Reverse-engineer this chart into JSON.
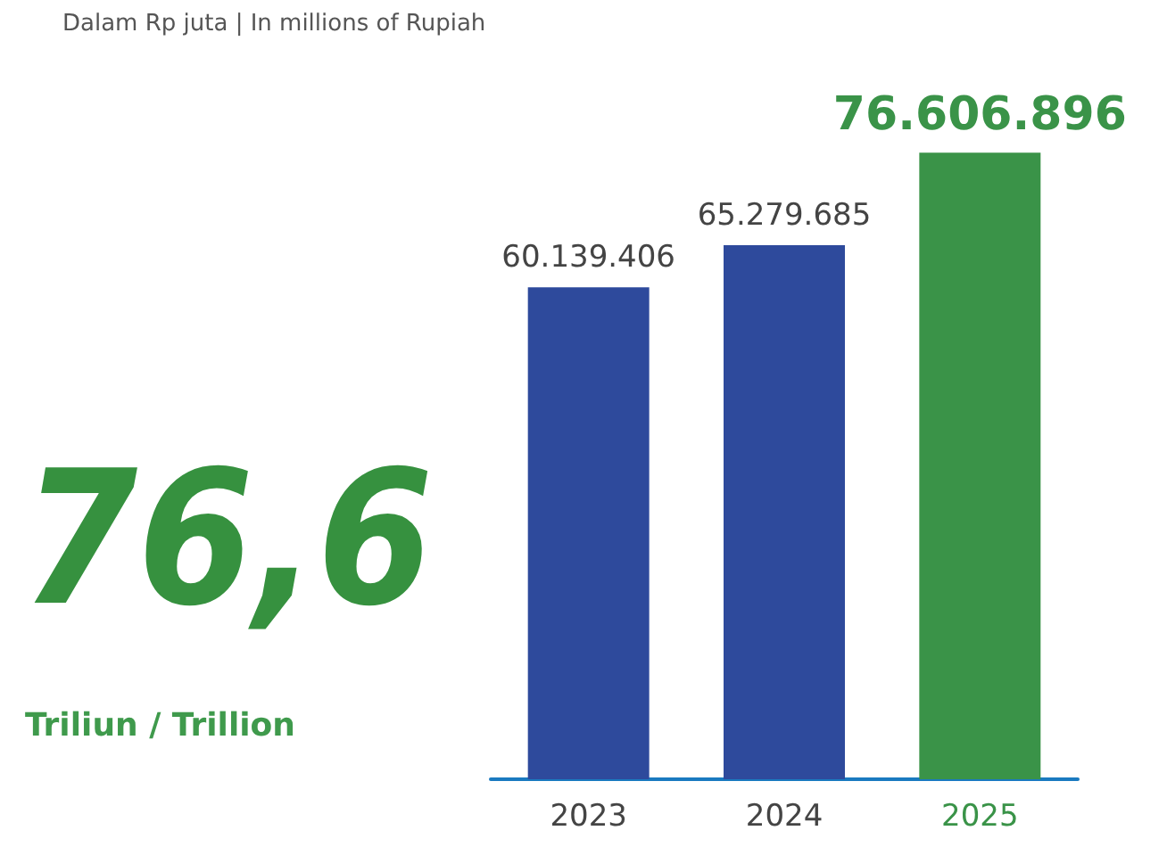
{
  "chart_data": {
    "type": "bar",
    "title": "Dalam Rp juta | In millions of Rupiah",
    "categories": [
      "2023",
      "2024",
      "2025"
    ],
    "values": [
      60139406,
      65279685,
      76606896
    ],
    "colors": [
      "#2e4a9c",
      "#2e4a9c",
      "#3a9348"
    ],
    "value_labels": [
      "60.139.406",
      "65.279.685",
      "76.606.896"
    ],
    "annotations": [
      "76,6",
      "Triliun / Trillion"
    ]
  }
}
